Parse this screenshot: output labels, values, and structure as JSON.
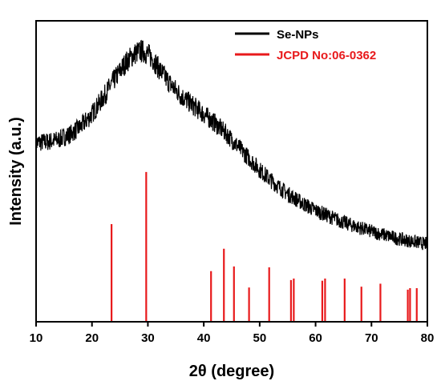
{
  "chart_data": {
    "type": "line",
    "xlabel": "2θ (degree)",
    "ylabel": "Intensity (a.u.)",
    "xlim": [
      10,
      80
    ],
    "x_ticks": [
      10,
      20,
      30,
      40,
      50,
      60,
      70,
      80
    ],
    "y_scale": "arbitrary units, no tick labels",
    "grid": false,
    "legend_position": "top-right",
    "series": [
      {
        "name": "Se-NPs",
        "kind": "noisy XRD pattern",
        "color": "#000000",
        "points": [
          [
            10,
            0.595
          ],
          [
            12,
            0.598
          ],
          [
            14,
            0.605
          ],
          [
            16,
            0.622
          ],
          [
            18,
            0.648
          ],
          [
            20,
            0.69
          ],
          [
            22,
            0.745
          ],
          [
            24,
            0.805
          ],
          [
            26,
            0.86
          ],
          [
            27,
            0.88
          ],
          [
            28,
            0.895
          ],
          [
            29,
            0.9
          ],
          [
            30,
            0.89
          ],
          [
            31,
            0.87
          ],
          [
            32,
            0.84
          ],
          [
            34,
            0.79
          ],
          [
            36,
            0.75
          ],
          [
            38,
            0.72
          ],
          [
            40,
            0.69
          ],
          [
            42,
            0.66
          ],
          [
            44,
            0.625
          ],
          [
            46,
            0.585
          ],
          [
            48,
            0.545
          ],
          [
            50,
            0.505
          ],
          [
            52,
            0.47
          ],
          [
            55,
            0.425
          ],
          [
            58,
            0.39
          ],
          [
            60,
            0.37
          ],
          [
            65,
            0.33
          ],
          [
            70,
            0.3
          ],
          [
            75,
            0.275
          ],
          [
            80,
            0.258
          ]
        ]
      },
      {
        "name": "JCPD No:06-0362",
        "kind": "reference stick pattern",
        "color": "#e8191b",
        "peaks": [
          [
            23.5,
            0.59
          ],
          [
            29.7,
            0.905
          ],
          [
            41.3,
            0.306
          ],
          [
            43.6,
            0.441
          ],
          [
            45.4,
            0.334
          ],
          [
            48.1,
            0.207
          ],
          [
            51.7,
            0.329
          ],
          [
            55.6,
            0.252
          ],
          [
            56.1,
            0.261
          ],
          [
            61.2,
            0.248
          ],
          [
            61.7,
            0.261
          ],
          [
            65.2,
            0.261
          ],
          [
            68.2,
            0.212
          ],
          [
            71.6,
            0.23
          ],
          [
            76.5,
            0.194
          ],
          [
            76.9,
            0.203
          ],
          [
            78.1,
            0.203
          ]
        ]
      }
    ]
  }
}
